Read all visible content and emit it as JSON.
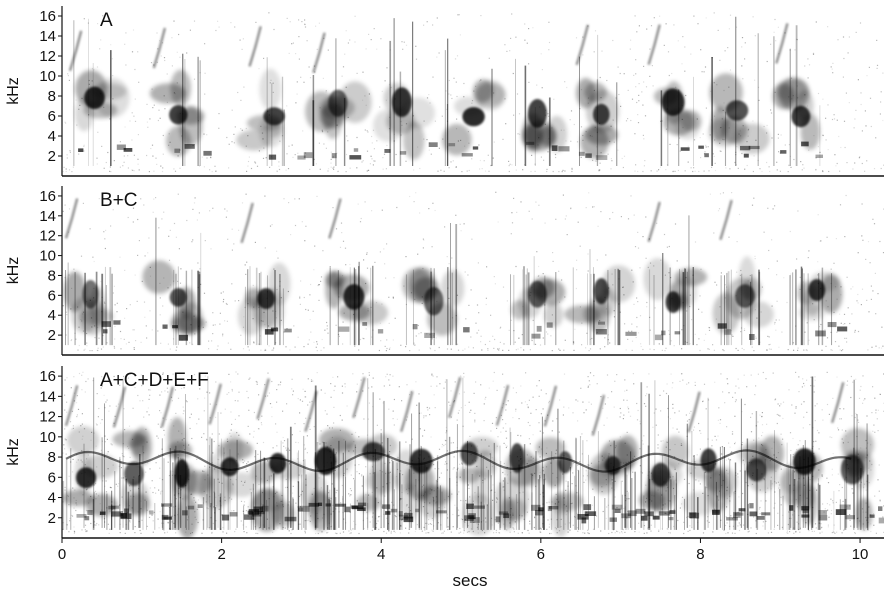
{
  "chart_data": {
    "type": "heatmap",
    "subtype": "spectrogram",
    "xlabel": "secs",
    "xlim": [
      0,
      10.3
    ],
    "x_ticks": [
      0,
      2,
      4,
      6,
      8,
      10
    ],
    "colormap": "grayscale (white = low energy, black = high energy)",
    "grid": false,
    "panels": [
      {
        "label": "A",
        "ylabel": "kHz",
        "ylim": [
          0,
          17
        ],
        "y_ticks": [
          2,
          4,
          6,
          8,
          10,
          12,
          14,
          16
        ],
        "song_onsets_secs": [
          0.05,
          1.1,
          2.3,
          3.1,
          3.9,
          4.8,
          5.6,
          6.4,
          7.3,
          8.1,
          8.9
        ],
        "dominant_band_khz": [
          2,
          9
        ]
      },
      {
        "label": "B+C",
        "ylabel": "kHz",
        "ylim": [
          0,
          17
        ],
        "y_ticks": [
          2,
          4,
          6,
          8,
          10,
          12,
          14,
          16
        ],
        "song_onsets_secs": [
          0.0,
          1.1,
          2.2,
          3.3,
          4.3,
          5.6,
          6.4,
          7.3,
          8.2,
          9.1
        ],
        "dominant_band_khz": [
          2,
          8
        ]
      },
      {
        "label": "A+C+D+E+F",
        "ylabel": "kHz",
        "ylim": [
          0,
          17
        ],
        "y_ticks": [
          2,
          4,
          6,
          8,
          10,
          12,
          14,
          16
        ],
        "song_onsets_secs": [
          0.0,
          0.6,
          1.2,
          1.8,
          2.4,
          3.0,
          3.6,
          4.2,
          4.8,
          5.4,
          6.0,
          6.6,
          7.2,
          7.8,
          8.4,
          9.0,
          9.6
        ],
        "dominant_band_khz": [
          1,
          10
        ]
      }
    ]
  }
}
